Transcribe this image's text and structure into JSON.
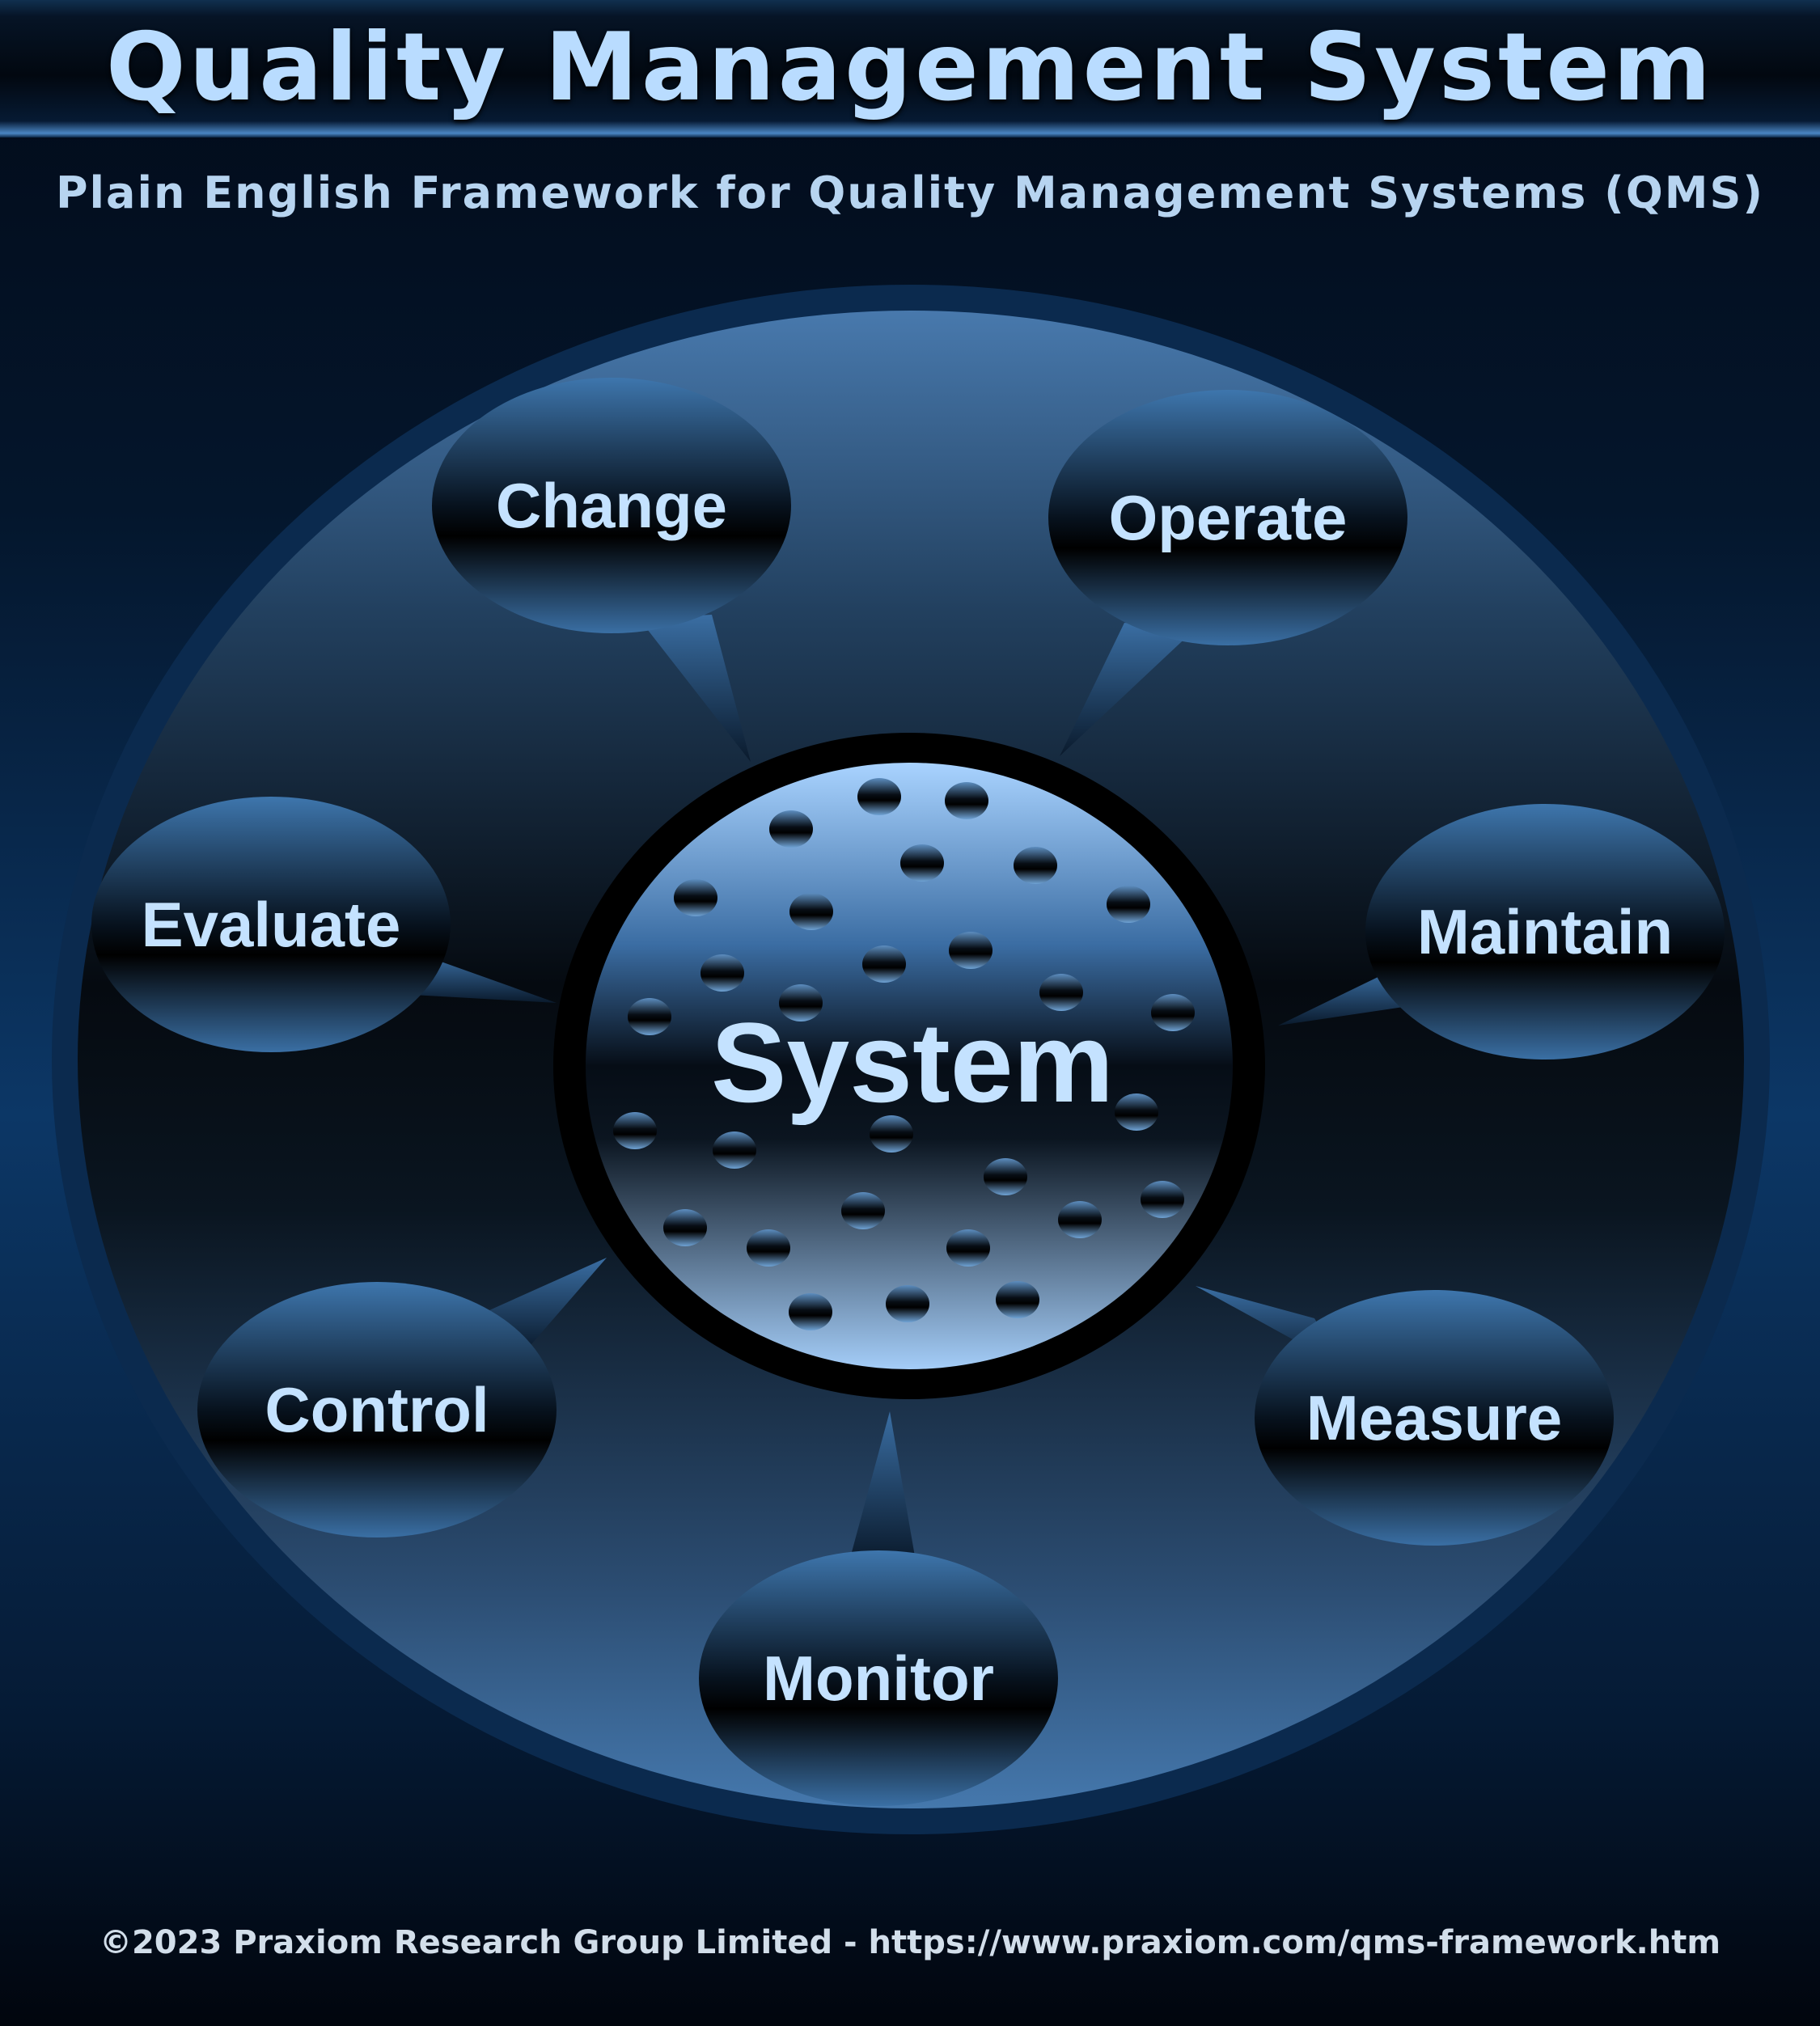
{
  "header": {
    "title": "Quality Management System",
    "subtitle": "Plain English Framework for Quality Management Systems (QMS)"
  },
  "diagram": {
    "center_label": "System",
    "nodes": [
      {
        "label": "Change"
      },
      {
        "label": "Operate"
      },
      {
        "label": "Evaluate"
      },
      {
        "label": "Maintain"
      },
      {
        "label": "Control"
      },
      {
        "label": "Measure"
      },
      {
        "label": "Monitor"
      }
    ]
  },
  "footer": {
    "copyright": "©2023 Praxiom Research Group Limited - https://www.praxiom.com/qms-framework.htm"
  },
  "colors": {
    "background": "#020a18",
    "accent_blue": "#3f78b4",
    "text_light_blue": "#c4e2ff"
  }
}
